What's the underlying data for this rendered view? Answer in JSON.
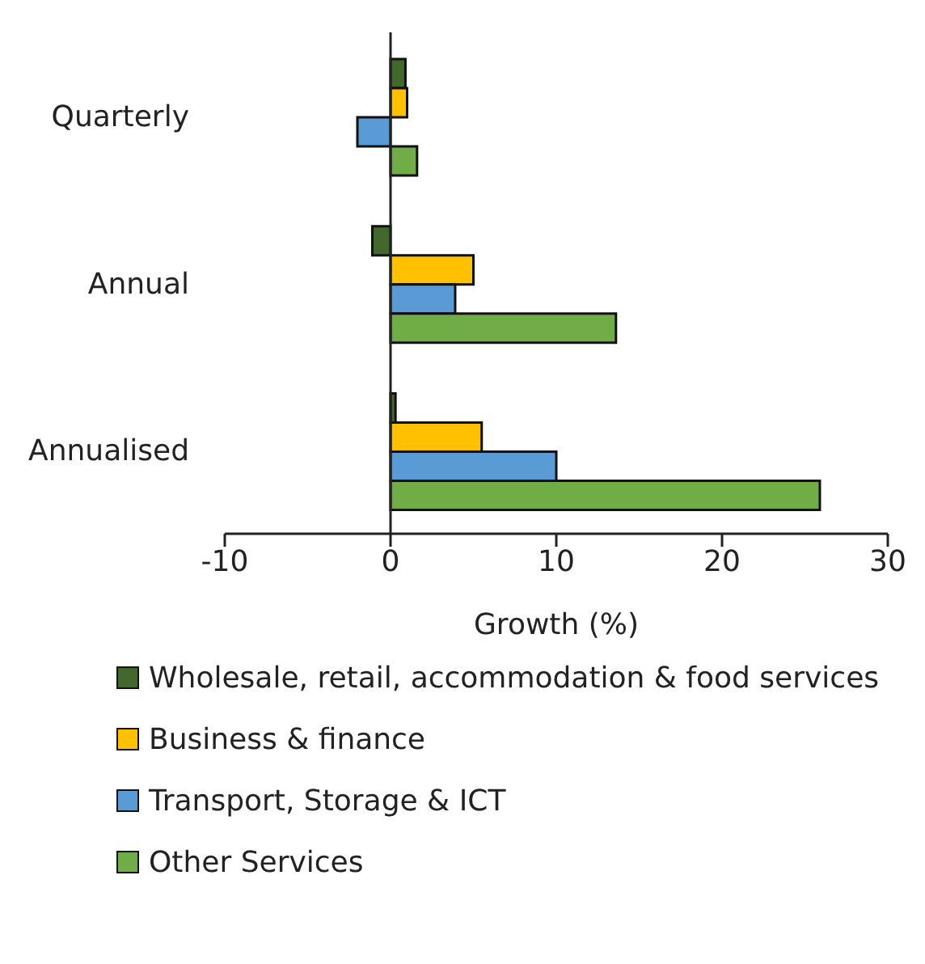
{
  "chart_data": {
    "type": "bar",
    "orientation": "horizontal",
    "xlabel": "Growth (%)",
    "categories": [
      "Quarterly",
      "Annual",
      "Annualised"
    ],
    "series": [
      {
        "name": "Wholesale, retail, accommodation & food services",
        "color": "#43682b",
        "values": [
          0.9,
          -1.1,
          0.3
        ]
      },
      {
        "name": "Business & finance",
        "color": "#ffc000",
        "values": [
          1.0,
          5.0,
          5.5
        ]
      },
      {
        "name": "Transport, Storage & ICT",
        "color": "#5b9bd5",
        "values": [
          -2.0,
          3.9,
          10.0
        ]
      },
      {
        "name": "Other Services",
        "color": "#70ad47",
        "values": [
          1.6,
          13.6,
          25.9
        ]
      }
    ],
    "xlim": [
      -10,
      30
    ],
    "xticks": [
      -10,
      0,
      10,
      20,
      30
    ],
    "grid": false,
    "legend": "bottom",
    "ref_lines": [
      {
        "axis": "x",
        "value": 0,
        "color": "#222222"
      }
    ]
  }
}
